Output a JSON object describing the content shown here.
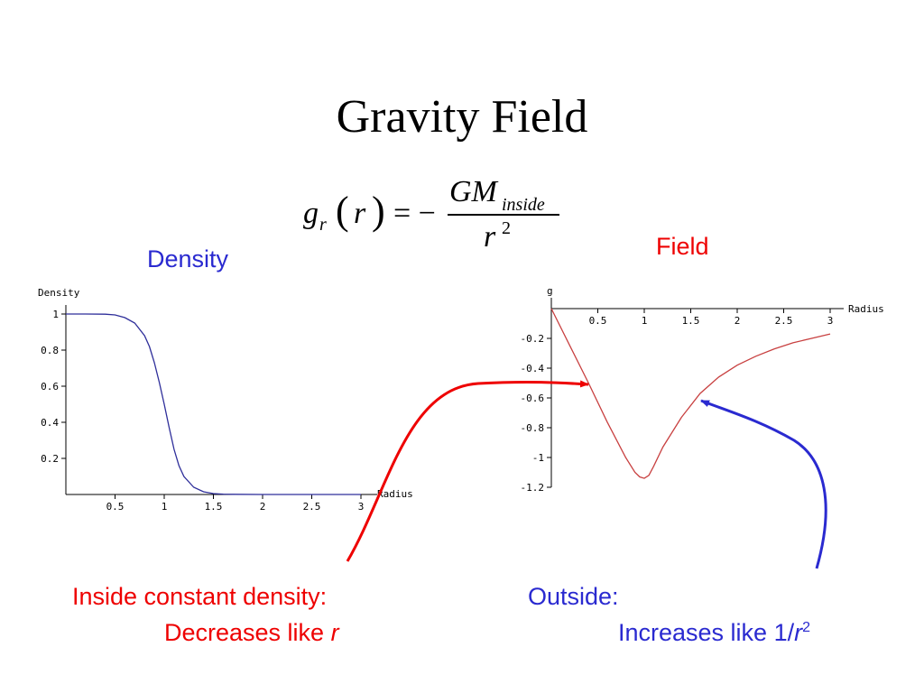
{
  "slide": {
    "title": "Gravity Field",
    "formula": {
      "lhs_g": "g",
      "lhs_sub": "r",
      "lhs_arg": "r",
      "eq": "= −",
      "num_gm": "GM",
      "num_sub": "inside",
      "den_r": "r",
      "den_exp": "2"
    },
    "labels": {
      "density": "Density",
      "field": "Field",
      "inside_line1": "Inside constant density:",
      "inside_line2_text": "Decreases like ",
      "inside_line2_var": "r",
      "outside_line1": "Outside:",
      "outside_line2_text": "Increases like 1/",
      "outside_line2_var": "r",
      "outside_line2_exp": "2"
    },
    "colors": {
      "text_blue": "#2a2ad0",
      "text_red": "#ee0000",
      "density_curve": "#2e2e9a",
      "field_curve": "#c84040",
      "arrow_red": "#ee0000",
      "arrow_blue": "#2a2ad0"
    }
  },
  "chart_data": [
    {
      "type": "line",
      "ylabel": "Density",
      "xlabel": "Radius",
      "xlim": [
        0,
        3
      ],
      "ylim": [
        0,
        1
      ],
      "xticks": [
        "0.5",
        "1",
        "1.5",
        "2",
        "2.5",
        "3"
      ],
      "xtick_values": [
        0.5,
        1,
        1.5,
        2,
        2.5,
        3
      ],
      "yticks": [
        "0.2",
        "0.4",
        "0.6",
        "0.8",
        "1"
      ],
      "ytick_values": [
        0.2,
        0.4,
        0.6,
        0.8,
        1
      ],
      "series": [
        {
          "x": [
            0,
            0.2,
            0.4,
            0.5,
            0.6,
            0.7,
            0.8,
            0.85,
            0.9,
            0.95,
            1.0,
            1.05,
            1.1,
            1.15,
            1.2,
            1.3,
            1.4,
            1.5,
            1.6,
            1.7,
            2.0,
            2.5,
            3.0
          ],
          "y": [
            1.0,
            1.0,
            0.999,
            0.995,
            0.98,
            0.95,
            0.88,
            0.82,
            0.73,
            0.62,
            0.5,
            0.37,
            0.25,
            0.16,
            0.1,
            0.04,
            0.015,
            0.005,
            0.002,
            0.001,
            0.0,
            0.0,
            0.0
          ]
        }
      ]
    },
    {
      "type": "line",
      "ylabel": "g",
      "xlabel": "Radius",
      "xlim": [
        0,
        3
      ],
      "ylim": [
        -1.2,
        0
      ],
      "xticks": [
        "0.5",
        "1",
        "1.5",
        "2",
        "2.5",
        "3"
      ],
      "xtick_values": [
        0.5,
        1,
        1.5,
        2,
        2.5,
        3
      ],
      "yticks": [
        "-0.2",
        "-0.4",
        "-0.6",
        "-0.8",
        "-1",
        "-1.2"
      ],
      "ytick_values": [
        -0.2,
        -0.4,
        -0.6,
        -0.8,
        -1,
        -1.2
      ],
      "series": [
        {
          "x": [
            0,
            0.2,
            0.4,
            0.6,
            0.8,
            0.9,
            0.95,
            1.0,
            1.05,
            1.1,
            1.2,
            1.4,
            1.6,
            1.8,
            2.0,
            2.2,
            2.4,
            2.6,
            2.8,
            3.0
          ],
          "y": [
            0,
            -0.25,
            -0.5,
            -0.76,
            -1.0,
            -1.1,
            -1.13,
            -1.14,
            -1.12,
            -1.06,
            -0.93,
            -0.73,
            -0.57,
            -0.46,
            -0.38,
            -0.32,
            -0.27,
            -0.23,
            -0.2,
            -0.17
          ]
        }
      ]
    }
  ]
}
